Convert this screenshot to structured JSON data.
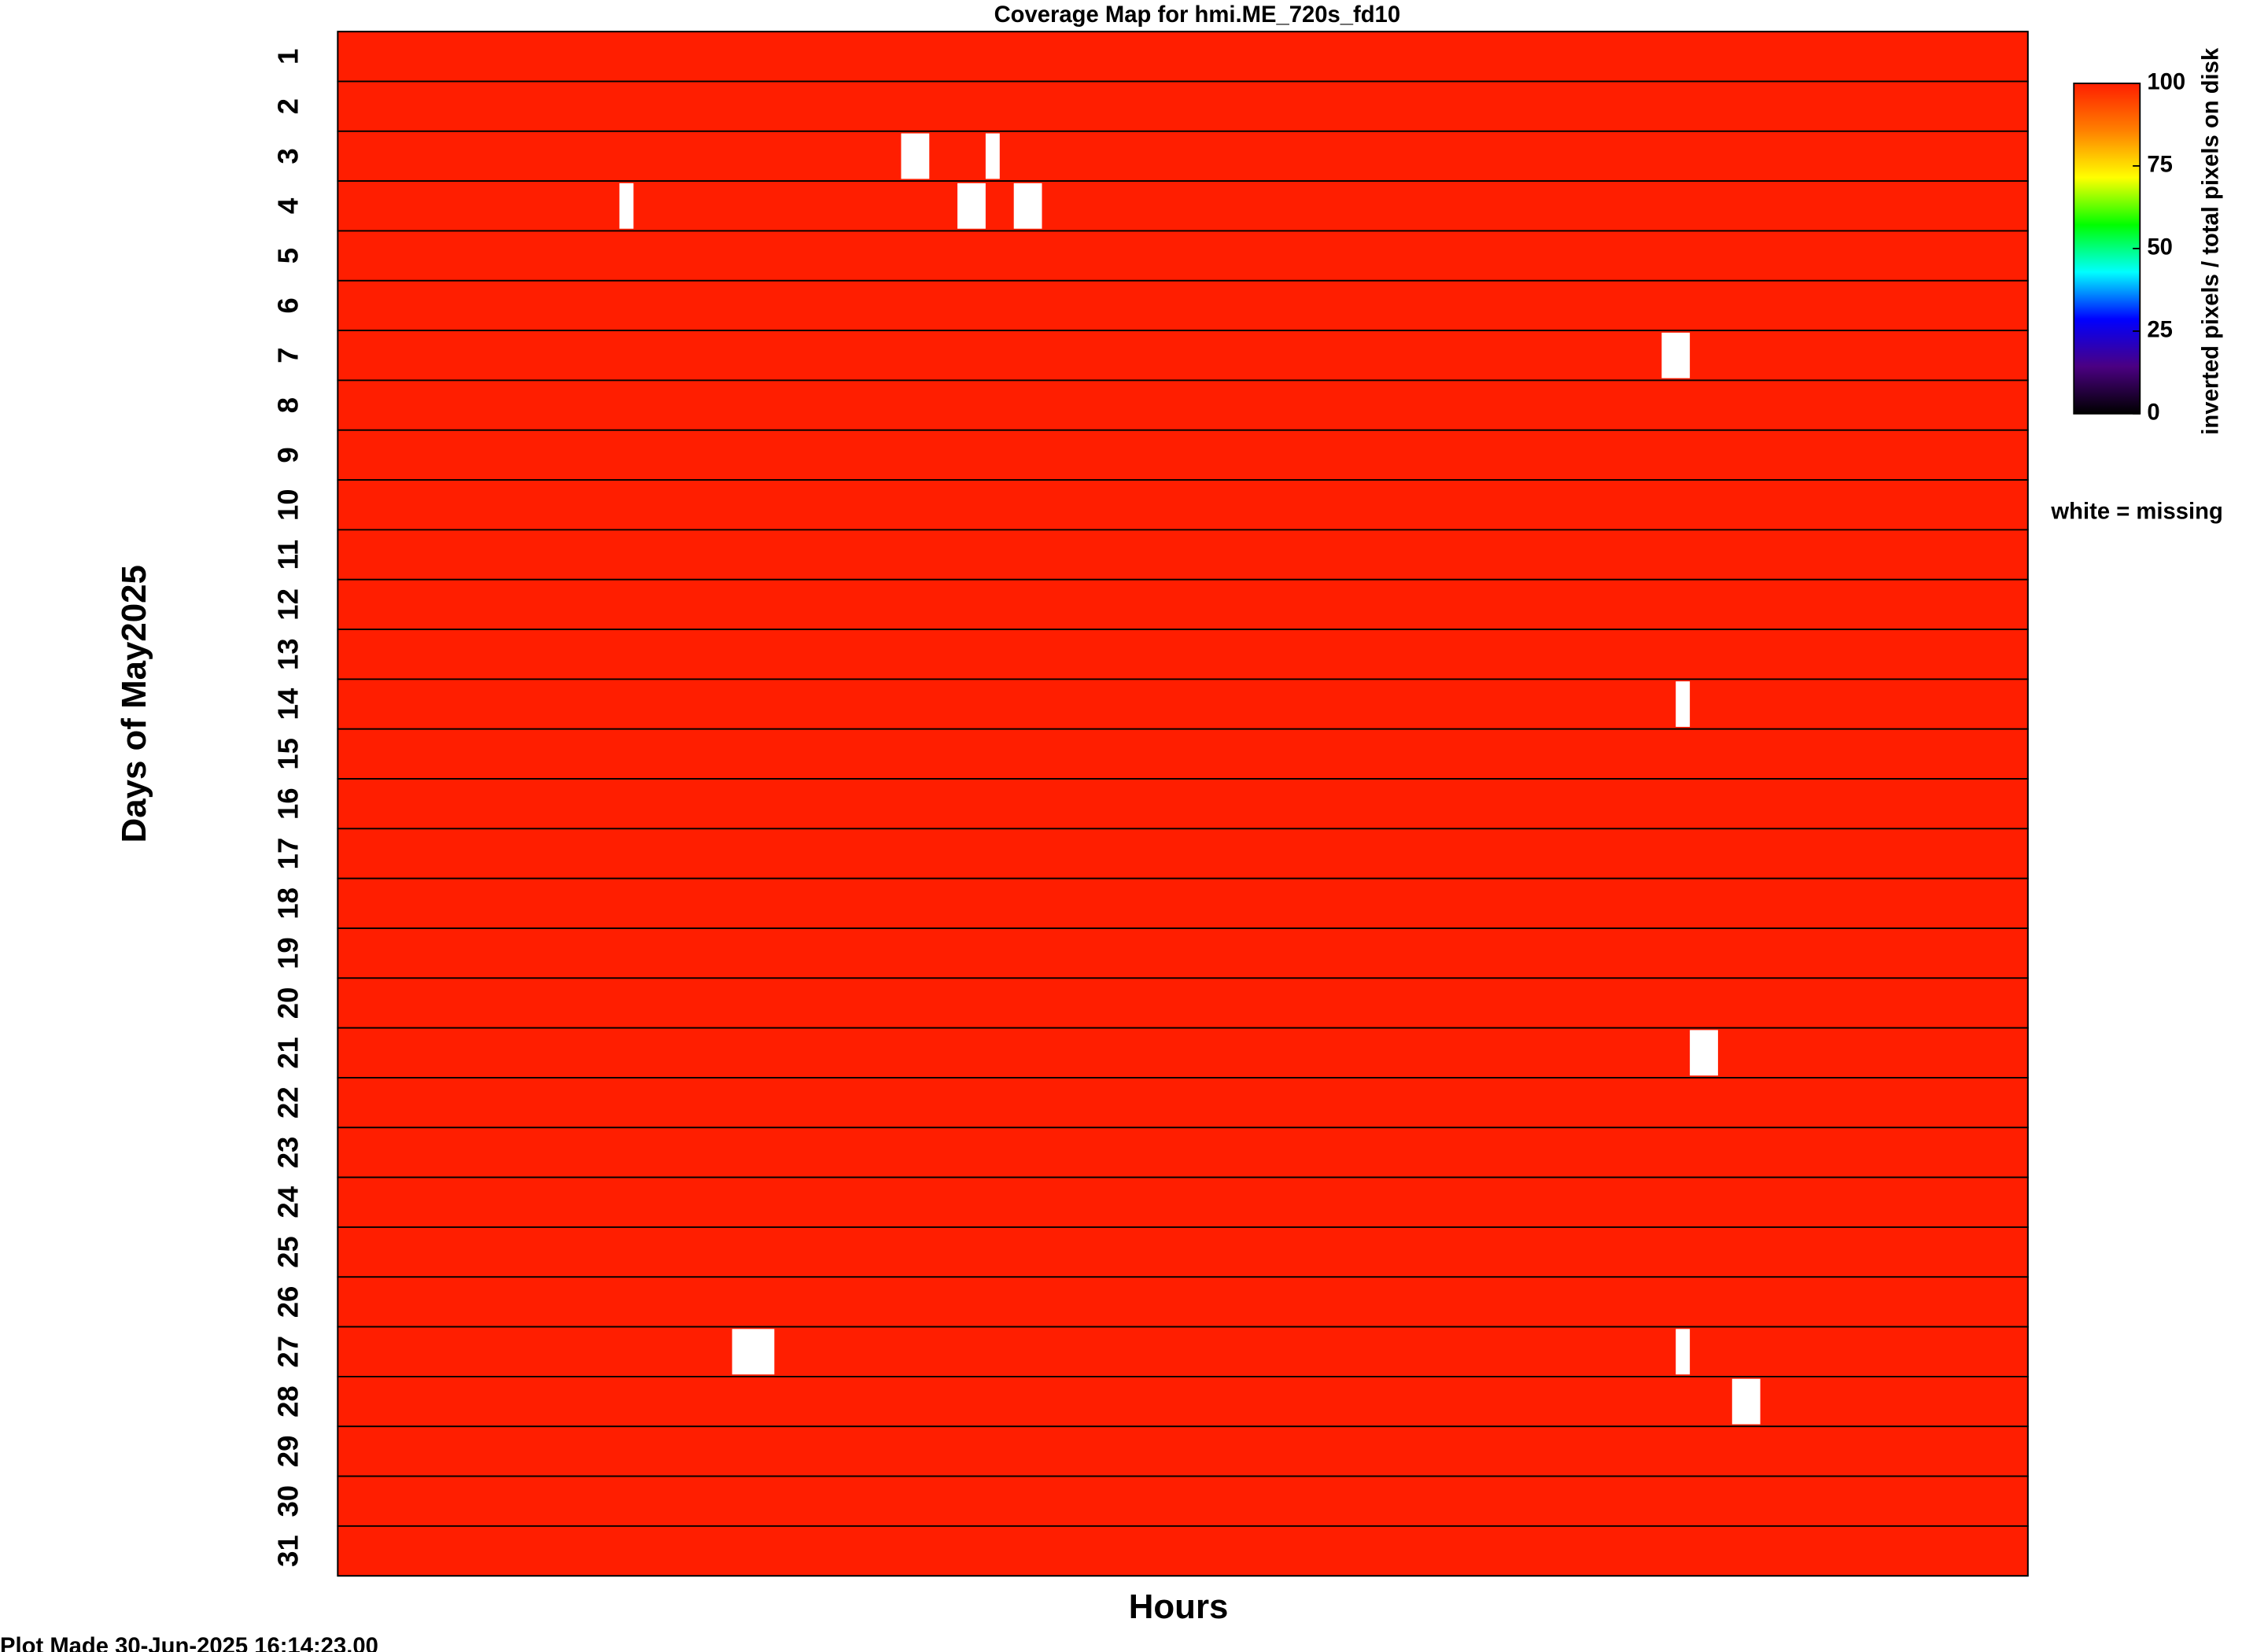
{
  "chart_data": {
    "type": "heatmap",
    "title": "Coverage Map for hmi.ME_720s_fd10",
    "xlabel": "Hours",
    "ylabel": "Days of May2025",
    "categories": [
      1,
      2,
      3,
      4,
      5,
      6,
      7,
      8,
      9,
      10,
      11,
      12,
      13,
      14,
      15,
      16,
      17,
      18,
      19,
      20,
      21,
      22,
      23,
      24,
      25,
      26,
      27,
      28,
      29,
      30,
      31
    ],
    "values": [
      100,
      100,
      100,
      100,
      100,
      100,
      100,
      100,
      100,
      100,
      100,
      100,
      100,
      100,
      100,
      100,
      100,
      100,
      100,
      100,
      100,
      100,
      100,
      100,
      100,
      100,
      100,
      100,
      100,
      100,
      100
    ],
    "xlim": [
      0,
      24
    ],
    "gaps": [
      {
        "day": 3,
        "start": 8.0,
        "end": 8.4
      },
      {
        "day": 3,
        "start": 9.2,
        "end": 9.4
      },
      {
        "day": 4,
        "start": 4.0,
        "end": 4.2
      },
      {
        "day": 4,
        "start": 8.8,
        "end": 9.2
      },
      {
        "day": 4,
        "start": 9.6,
        "end": 10.0
      },
      {
        "day": 7,
        "start": 18.8,
        "end": 19.2
      },
      {
        "day": 14,
        "start": 19.0,
        "end": 19.2
      },
      {
        "day": 21,
        "start": 19.2,
        "end": 19.6
      },
      {
        "day": 27,
        "start": 5.6,
        "end": 6.2
      },
      {
        "day": 27,
        "start": 19.0,
        "end": 19.2
      },
      {
        "day": 28,
        "start": 19.8,
        "end": 20.2
      }
    ],
    "colorbar": {
      "label": "inverted pixels / total pixels on disk",
      "lim": [
        0,
        100
      ],
      "ticks": [
        0,
        25,
        50,
        75,
        100
      ],
      "colors": [
        "#000000",
        "#4b0082",
        "#0000ff",
        "#00ffff",
        "#00ff00",
        "#ffff00",
        "#ff8000",
        "#ff1e00"
      ]
    },
    "note": "white = missing",
    "footer": "Plot Made 30-Jun-2025 16:14:23.00"
  }
}
